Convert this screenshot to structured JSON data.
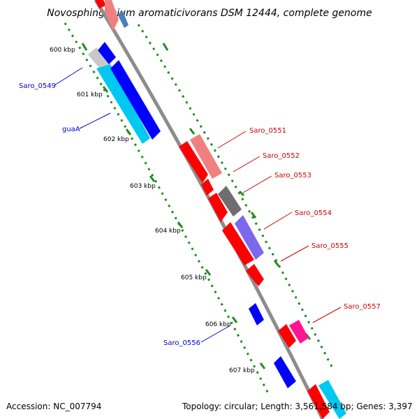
{
  "title": "Novosphingobium aromaticivorans DSM 12444, complete genome",
  "footer": {
    "accession": "Accession: NC_007794",
    "summary": "Topology: circular; Length: 3,561,584 bp; Genes: 3,397"
  },
  "ticks": [
    "600 kbp",
    "601 kbp",
    "602 kbp",
    "603 kbp",
    "604 kbp",
    "605 kbp",
    "606 kbp",
    "607 kbp"
  ],
  "labels": {
    "saro_0549": "Saro_0549",
    "guaA": "guaA",
    "saro_0551": "Saro_0551",
    "saro_0552": "Saro_0552",
    "saro_0553": "Saro_0553",
    "saro_0554": "Saro_0554",
    "saro_0555": "Saro_0555",
    "saro_0556": "Saro_0556",
    "saro_0557": "Saro_0557"
  },
  "colors": {
    "backbone": "#8c8c8c",
    "tick_green": "#1e8c1e",
    "forward_label": "#cc0000",
    "reverse_label": "#0000cc",
    "red": "#ff0000",
    "salmon": "#f08080",
    "gray": "#6e6e6e",
    "purple": "#7b68ee",
    "blue": "#0000ff",
    "cyan": "#00c8f0",
    "light_gray": "#c8c8c8",
    "magenta": "#ff1493",
    "steel": "#4682b4"
  }
}
